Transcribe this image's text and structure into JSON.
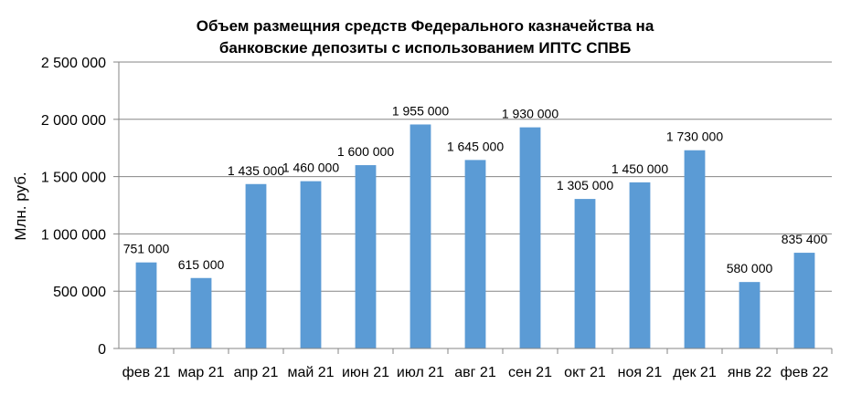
{
  "chart_data": {
    "type": "bar",
    "title_lines": [
      "Объем размещния средств Федерального казначейства на",
      "банковские депозиты с использованием ИПТС СПВБ"
    ],
    "ylabel": "Млн. руб.",
    "xlabel": "",
    "ylim": [
      0,
      2500000
    ],
    "yticks": [
      0,
      500000,
      1000000,
      1500000,
      2000000,
      2500000
    ],
    "ytick_labels": [
      "0",
      "500 000",
      "1 000 000",
      "1 500 000",
      "2 000 000",
      "2 500 000"
    ],
    "grid": true,
    "legend": "none",
    "bar_color": "#5B9BD5",
    "categories": [
      "фев 21",
      "мар 21",
      "апр 21",
      "май 21",
      "июн 21",
      "июл 21",
      "авг 21",
      "сен 21",
      "окт 21",
      "ноя 21",
      "дек 21",
      "янв 22",
      "фев 22"
    ],
    "values": [
      751000,
      615000,
      1435000,
      1460000,
      1600000,
      1955000,
      1645000,
      1930000,
      1305000,
      1450000,
      1730000,
      580000,
      835400
    ],
    "value_labels": [
      "751 000",
      "615 000",
      "1 435 000",
      "1 460 000",
      "1 600 000",
      "1 955 000",
      "1 645 000",
      "1 930 000",
      "1 305 000",
      "1 450 000",
      "1 730 000",
      "580 000",
      "835 400"
    ]
  }
}
